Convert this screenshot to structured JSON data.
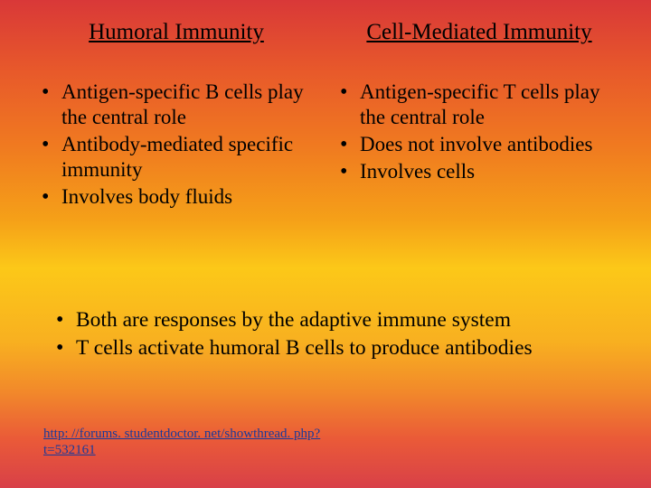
{
  "left": {
    "heading": "Humoral Immunity",
    "items": [
      "Antigen-specific B cells play the central role",
      "Antibody-mediated specific immunity",
      "Involves body fluids"
    ]
  },
  "right": {
    "heading": "Cell-Mediated Immunity",
    "items": [
      "Antigen-specific T cells play the central role",
      "Does not involve antibodies",
      "Involves cells"
    ]
  },
  "bottom": {
    "items": [
      "Both are responses by the adaptive immune system",
      "T cells activate humoral B cells to produce antibodies"
    ]
  },
  "link": {
    "line1": "http: //forums. studentdoctor. net/showthread. php?",
    "line2": "t=532161",
    "href": "http://forums.studentdoctor.net/showthread.php?t=532161"
  },
  "style": {
    "gradient_colors": [
      "#d93838",
      "#e85a2a",
      "#f07a20",
      "#f5a018",
      "#fcc818",
      "#f8b020",
      "#f28a2a",
      "#ea5a38",
      "#d84048"
    ],
    "text_color": "#000000",
    "link_color": "#1a3a9a",
    "heading_fontsize": 25,
    "body_fontsize": 23,
    "footer_fontsize": 15,
    "font_family": "Times New Roman"
  }
}
